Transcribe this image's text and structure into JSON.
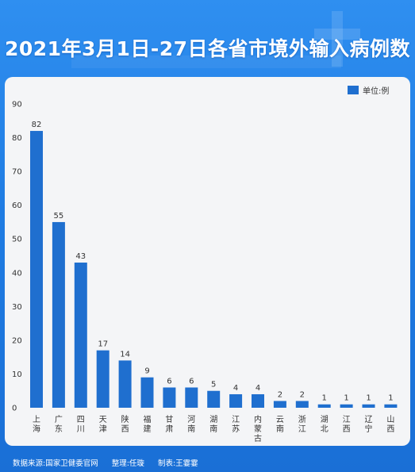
{
  "title": "2021年3月1日-27日各省市境外输入病例数",
  "legend": {
    "label": "单位:例",
    "color": "#1f6fcf"
  },
  "chart_data": {
    "type": "bar",
    "title": "2021年3月1日-27日各省市境外输入病例数",
    "categories": [
      "上海",
      "广东",
      "四川",
      "天津",
      "陕西",
      "福建",
      "甘肃",
      "河南",
      "湖南",
      "江苏",
      "内蒙古",
      "云南",
      "浙江",
      "湖北",
      "江西",
      "辽宁",
      "山西"
    ],
    "values": [
      82,
      55,
      43,
      17,
      14,
      9,
      6,
      6,
      5,
      4,
      4,
      2,
      2,
      1,
      1,
      1,
      1
    ],
    "unit": "单位:例",
    "ylim": [
      0,
      90
    ],
    "yticks": [
      "0",
      "10",
      "20",
      "30",
      "40",
      "50",
      "60",
      "70",
      "80",
      "90"
    ],
    "grid": false,
    "legend_position": "top-right",
    "bar_color": "#1f6fcf"
  },
  "footer": {
    "source": "数据来源:国家卫健委官网",
    "editor": "整理:任璇",
    "maker": "制表:王霎霎"
  }
}
